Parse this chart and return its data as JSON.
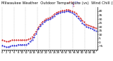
{
  "title": "Milwaukee Weather  Outdoor Temperature (vs)  Wind Chill (Last 24 Hours)",
  "temp_color": "#cc0000",
  "chill_color": "#0000cc",
  "background_color": "#ffffff",
  "grid_color": "#888888",
  "ylim": [
    -10,
    45
  ],
  "ytick_values": [
    40,
    35,
    30,
    25,
    20,
    15,
    10,
    5,
    0,
    -5
  ],
  "n_points": 48,
  "temp_values": [
    3,
    2,
    1,
    1,
    2,
    3,
    3,
    3,
    3,
    3,
    3,
    3,
    3,
    4,
    5,
    7,
    10,
    14,
    19,
    23,
    26,
    28,
    30,
    31,
    32,
    34,
    36,
    38,
    39,
    40,
    41,
    41,
    42,
    42,
    41,
    40,
    39,
    37,
    34,
    31,
    28,
    26,
    23,
    22,
    21,
    20,
    19,
    18
  ],
  "chill_values": [
    -4,
    -5,
    -6,
    -6,
    -5,
    -4,
    -4,
    -4,
    -3,
    -3,
    -3,
    -3,
    -3,
    -2,
    1,
    3,
    7,
    11,
    17,
    21,
    24,
    26,
    28,
    29,
    30,
    32,
    34,
    36,
    37,
    38,
    39,
    39,
    40,
    40,
    39,
    38,
    36,
    34,
    31,
    28,
    25,
    23,
    20,
    19,
    18,
    17,
    16,
    15
  ],
  "n_gridlines": 9,
  "title_fontsize": 3.8,
  "tick_fontsize": 3.2,
  "xtick_fontsize": 2.8
}
